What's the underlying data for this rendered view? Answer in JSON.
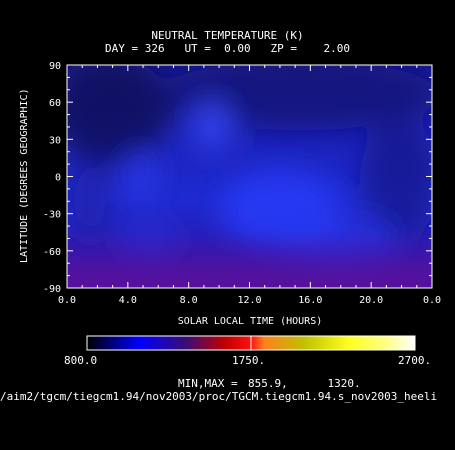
{
  "chart_data": {
    "type": "heatmap",
    "title": "NEUTRAL TEMPERATURE (K)",
    "subtitle": "DAY = 326   UT =  0.00   ZP =    2.00",
    "xlabel": "SOLAR LOCAL TIME (HOURS)",
    "ylabel": "LATITUDE (DEGREES GEOGRAPHIC)",
    "x_ticks": [
      "0.0",
      "4.0",
      "8.0",
      "12.0",
      "16.0",
      "20.0",
      "0.0"
    ],
    "y_ticks": [
      "90",
      "60",
      "30",
      "0",
      "-30",
      "-60",
      "-90"
    ],
    "xlim": [
      0,
      24
    ],
    "ylim": [
      -90,
      90
    ],
    "colorbar": {
      "min_label": "800.0",
      "mid_label": "1750.",
      "max_label": "2700.",
      "range": [
        800,
        2700
      ]
    },
    "minmax_label": "MIN,MAX =",
    "minmax_values": "855.9,      1320.",
    "min": 855.9,
    "max": 1320,
    "filepath": "/aim2/tgcm/tiegcm1.94/nov2003/proc/TGCM.tiegcm1.94.s_nov2003_heeli"
  },
  "colors": {
    "background": "#000000",
    "dark_blue": "#10104a",
    "blue": "#2030e0",
    "purple": "#4a1098"
  }
}
